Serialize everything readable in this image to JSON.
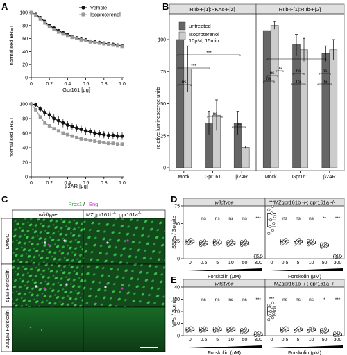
{
  "panels": {
    "A": "A",
    "B": "B",
    "C": "C",
    "D": "D",
    "E": "E"
  },
  "chart_data": [
    {
      "id": "A-top",
      "type": "line",
      "xlabel": "Gpr161 [μg]",
      "ylabel": "normalised BRET",
      "xlim": [
        0,
        1.0
      ],
      "ylim": [
        0,
        100
      ],
      "xticks": [
        "0",
        "0.2",
        "0.4",
        "0.6",
        "0.8",
        "1.0"
      ],
      "yticks": [
        "0",
        "20",
        "40",
        "60",
        "80",
        "100"
      ],
      "legend": [
        "Vehicle",
        "Isoproterenol"
      ],
      "legend_position": "top-right",
      "series": [
        {
          "name": "Vehicle",
          "color": "#111111",
          "marker": "circle",
          "x": [
            0,
            0.05,
            0.1,
            0.15,
            0.2,
            0.25,
            0.3,
            0.35,
            0.4,
            0.45,
            0.5,
            0.55,
            0.6,
            0.65,
            0.7,
            0.75,
            0.8,
            0.85,
            0.9,
            0.95,
            1.0
          ],
          "y": [
            100,
            97,
            92,
            86,
            80,
            76,
            72,
            69,
            66,
            63,
            61,
            59,
            58,
            56,
            55,
            54,
            53,
            52,
            51,
            50,
            49
          ]
        },
        {
          "name": "Isoproterenol",
          "color": "#999999",
          "marker": "square",
          "x": [
            0,
            0.05,
            0.1,
            0.15,
            0.2,
            0.25,
            0.3,
            0.35,
            0.4,
            0.45,
            0.5,
            0.55,
            0.6,
            0.65,
            0.7,
            0.75,
            0.8,
            0.85,
            0.9,
            0.95,
            1.0
          ],
          "y": [
            100,
            96,
            90,
            84,
            78,
            74,
            70,
            67,
            64,
            62,
            60,
            58,
            57,
            55,
            54,
            53,
            52,
            51,
            50,
            49,
            48
          ]
        }
      ]
    },
    {
      "id": "A-bottom",
      "type": "line",
      "xlabel": "β2AR [μg]",
      "ylabel": "normalised BRET",
      "xlim": [
        0,
        1.0
      ],
      "ylim": [
        0,
        100
      ],
      "xticks": [
        "0",
        "0.2",
        "0.4",
        "0.6",
        "0.8",
        "1.0"
      ],
      "yticks": [
        "0",
        "20",
        "40",
        "60",
        "80",
        "100"
      ],
      "series": [
        {
          "name": "Vehicle",
          "color": "#111111",
          "marker": "circle",
          "x": [
            0,
            0.05,
            0.1,
            0.15,
            0.2,
            0.25,
            0.3,
            0.35,
            0.4,
            0.45,
            0.5,
            0.55,
            0.6,
            0.65,
            0.7,
            0.75,
            0.8,
            0.85,
            0.9,
            0.95,
            1.0
          ],
          "y": [
            100,
            99,
            93,
            88,
            85,
            80,
            77,
            74,
            71,
            69,
            67,
            65,
            63,
            62,
            60,
            59,
            58,
            57,
            57,
            56,
            56
          ],
          "err": [
            3,
            3,
            4,
            5,
            5,
            6,
            6,
            6,
            6,
            5,
            5,
            5,
            5,
            5,
            5,
            5,
            5,
            5,
            5,
            5,
            5
          ]
        },
        {
          "name": "Isoproterenol",
          "color": "#999999",
          "marker": "square",
          "x": [
            0,
            0.05,
            0.1,
            0.15,
            0.2,
            0.25,
            0.3,
            0.35,
            0.4,
            0.45,
            0.5,
            0.55,
            0.6,
            0.65,
            0.7,
            0.75,
            0.8,
            0.85,
            0.9,
            0.95,
            1.0
          ],
          "y": [
            100,
            92,
            82,
            74,
            70,
            66,
            63,
            60,
            58,
            56,
            54,
            52,
            51,
            50,
            49,
            48,
            47,
            46,
            46,
            45,
            45
          ]
        }
      ]
    },
    {
      "id": "B",
      "type": "bar",
      "ylabel": "relative luminescence units",
      "ylim": [
        0,
        120
      ],
      "yticks": [
        "0",
        "25",
        "50",
        "75",
        "100"
      ],
      "facets": [
        "RIIb-F[1]:PKAc-F[2]",
        "RIIb-F[1]:RIIb-F[2]"
      ],
      "categories": [
        "Mock",
        "Gpr161",
        "β2AR"
      ],
      "legend": [
        "untreated",
        "Isoproterenol\n10μM, 15min"
      ],
      "series": [
        {
          "name": "untreated",
          "color": "#666666",
          "facet1": [
            100,
            35,
            35
          ],
          "err1": [
            0,
            9,
            9
          ],
          "facet2": [
            107,
            96,
            89
          ],
          "err2": [
            0,
            8,
            6
          ]
        },
        {
          "name": "Isoproterenol 10μM, 15min",
          "color": "#cccccc",
          "facet1": [
            77,
            41,
            16
          ],
          "err1": [
            18,
            12,
            1
          ],
          "facet2": [
            111,
            92,
            92
          ],
          "err2": [
            3,
            9,
            8
          ]
        }
      ],
      "annotations": [
        "ns",
        "***",
        "***",
        "ns",
        "ns",
        "ns",
        "ns",
        "ns",
        "*",
        "ns",
        "ns",
        "ns",
        "ns"
      ]
    },
    {
      "id": "D",
      "type": "scatter",
      "ylabel": "SSFs / Somite",
      "ylim": [
        0,
        75
      ],
      "yticks": [
        "0",
        "25",
        "50",
        "75"
      ],
      "groups": [
        "wildtype",
        "MZgpr161b -/-; gpr161a -/-"
      ],
      "categories": [
        "0",
        "0.5",
        "5",
        "10",
        "50",
        "300"
      ],
      "xlabel": "Forskolin (μM)",
      "medians_wt": [
        24,
        22,
        23,
        22,
        22,
        3
      ],
      "medians_mut": [
        55,
        24,
        24,
        23,
        19,
        3
      ],
      "annotations_wt": [
        "",
        "ns",
        "ns",
        "ns",
        "ns",
        "***"
      ],
      "annotations_mut": [
        "***",
        "ns",
        "ns",
        "ns",
        "**",
        "***"
      ]
    },
    {
      "id": "E",
      "type": "scatter",
      "ylabel": "MPs / Somite",
      "ylim": [
        0,
        40
      ],
      "yticks": [
        "0",
        "10",
        "20",
        "30",
        "40"
      ],
      "groups": [
        "wildtype",
        "MZgpr161b -/-; gpr161a -/-"
      ],
      "categories": [
        "0",
        "0.5",
        "5",
        "10",
        "50",
        "300"
      ],
      "xlabel": "Forskolin (μM)",
      "medians_wt": [
        5,
        5,
        5,
        5,
        4,
        1
      ],
      "medians_mut": [
        20,
        5,
        5,
        5,
        4,
        1
      ],
      "annotations_wt": [
        "",
        "ns",
        "ns",
        "ns",
        "ns",
        "***"
      ],
      "annotations_mut": [
        "***",
        "ns",
        "ns",
        "ns",
        "*",
        "***"
      ]
    }
  ],
  "microscopy": {
    "stain_green": "Prox1",
    "slash": " / ",
    "stain_magenta": "Eng",
    "col_wt": "wildtype",
    "col_mut_prefix": "MZgpr161b",
    "col_mut_sup1": "-/-",
    "col_mut_mid": "; gpr161a",
    "col_mut_sup2": "-/-",
    "rows": [
      "DMSO",
      "5μM Forskolin",
      "300μM Forskolin"
    ],
    "colors": {
      "green": "#1fa33a",
      "magenta": "#c23ad1",
      "bg": "#113a18"
    }
  },
  "B_labels": {
    "facet1": "RIIb-F[1]:PKAc-F[2]",
    "facet2": "RIIb-F[1]:RIIb-F[2]",
    "legend1": "untreated",
    "legend2a": "Isoproterenol",
    "legend2b": "10μM, 15min"
  },
  "DE_labels": {
    "wt": "wildtype",
    "mut": "MZgpr161b -/-; gpr161a -/-",
    "forskolin": "Forskolin (μM)"
  }
}
